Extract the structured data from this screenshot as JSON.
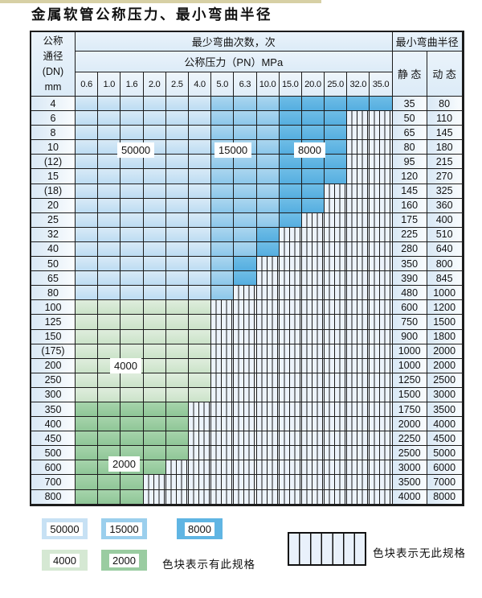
{
  "page": {
    "title": "金属软管公称压力、最小弯曲半径"
  },
  "table": {
    "corner": {
      "lines": [
        "公称",
        "通径",
        "(DN)",
        "mm"
      ]
    },
    "headers": {
      "bend_cycles": "最少弯曲次数，次",
      "pressure": "公称压力（PN）MPa",
      "min_bend_radius": "最小弯曲半径",
      "static": "静 态",
      "dynamic": "动 态"
    },
    "pressure_columns": [
      "0.6",
      "1.0",
      "1.6",
      "2.0",
      "2.5",
      "4.0",
      "5.0",
      "6.3",
      "10.0",
      "15.0",
      "20.0",
      "25.0",
      "32.0",
      "35.0"
    ],
    "cell_code_key": {
      "L": "blue-light: 50000 cycles",
      "M": "blue-medium: 15000 cycles",
      "D": "blue-dark: 8000 cycles",
      "G": "green-light: 4000 cycles",
      "g": "green-medium: 2000 cycles",
      "H": "hatched: no such specification"
    },
    "rows": [
      {
        "dn": "4",
        "cells": "LLLLLLMMMDDDDD",
        "static": "35",
        "dynamic": "80"
      },
      {
        "dn": "6",
        "cells": "LLLLLLMMMDDDHH",
        "static": "50",
        "dynamic": "110"
      },
      {
        "dn": "8",
        "cells": "LLLLLLMMMDDDHH",
        "static": "65",
        "dynamic": "145"
      },
      {
        "dn": "10",
        "cells": "LLLLLLMMMDDDHH",
        "static": "80",
        "dynamic": "180"
      },
      {
        "dn": "(12)",
        "cells": "LLLLLLMMMDDDHH",
        "static": "95",
        "dynamic": "215"
      },
      {
        "dn": "15",
        "cells": "LLLLLLMMMDDDHH",
        "static": "120",
        "dynamic": "270"
      },
      {
        "dn": "(18)",
        "cells": "LLLLLLMMMDDHHH",
        "static": "145",
        "dynamic": "325"
      },
      {
        "dn": "20",
        "cells": "LLLLLLMMMDDHHH",
        "static": "160",
        "dynamic": "360"
      },
      {
        "dn": "25",
        "cells": "LLLLLLMMMDHHHH",
        "static": "175",
        "dynamic": "400"
      },
      {
        "dn": "32",
        "cells": "LLLLLLMMDHHHHH",
        "static": "225",
        "dynamic": "510"
      },
      {
        "dn": "40",
        "cells": "LLLLLLMMDHHHHH",
        "static": "280",
        "dynamic": "640"
      },
      {
        "dn": "50",
        "cells": "LLLLLLMDHHHHHH",
        "static": "350",
        "dynamic": "800"
      },
      {
        "dn": "65",
        "cells": "LLLLLLMDHHHHHH",
        "static": "390",
        "dynamic": "845"
      },
      {
        "dn": "80",
        "cells": "LLLLLLMHHHHHHH",
        "static": "480",
        "dynamic": "1000"
      },
      {
        "dn": "100",
        "cells": "GGGGGGHHHHHHHH",
        "static": "600",
        "dynamic": "1200"
      },
      {
        "dn": "125",
        "cells": "GGGGGGHHHHHHHH",
        "static": "750",
        "dynamic": "1500"
      },
      {
        "dn": "150",
        "cells": "GGGGGGHHHHHHHH",
        "static": "900",
        "dynamic": "1800"
      },
      {
        "dn": "(175)",
        "cells": "GGGGGGHHHHHHHH",
        "static": "1000",
        "dynamic": "2000"
      },
      {
        "dn": "200",
        "cells": "GGGGGGHHHHHHHH",
        "static": "1000",
        "dynamic": "2000"
      },
      {
        "dn": "250",
        "cells": "GGGGGGHHHHHHHH",
        "static": "1250",
        "dynamic": "2500"
      },
      {
        "dn": "300",
        "cells": "GGGGGGHHHHHHHH",
        "static": "1500",
        "dynamic": "3000"
      },
      {
        "dn": "350",
        "cells": "gggggHHHHHHHHH",
        "static": "1750",
        "dynamic": "3500"
      },
      {
        "dn": "400",
        "cells": "gggggHHHHHHHHH",
        "static": "2000",
        "dynamic": "4000"
      },
      {
        "dn": "450",
        "cells": "gggggHHHHHHHHH",
        "static": "2250",
        "dynamic": "4500"
      },
      {
        "dn": "500",
        "cells": "gggggHHHHHHHHH",
        "static": "2500",
        "dynamic": "5000"
      },
      {
        "dn": "600",
        "cells": "ggggHHHHHHHHHH",
        "static": "3000",
        "dynamic": "6000"
      },
      {
        "dn": "700",
        "cells": "gggHHHHHHHHHHH",
        "static": "3500",
        "dynamic": "7000"
      },
      {
        "dn": "800",
        "cells": "gggHHHHHHHHHHH",
        "static": "4000",
        "dynamic": "8000"
      }
    ]
  },
  "overlay_labels": [
    {
      "text": "50000"
    },
    {
      "text": "15000"
    },
    {
      "text": "8000"
    },
    {
      "text": "4000"
    },
    {
      "text": "2000"
    }
  ],
  "legend": {
    "swatches": [
      {
        "text": "50000",
        "color_key": "L"
      },
      {
        "text": "15000",
        "color_key": "M"
      },
      {
        "text": "8000",
        "color_key": "D"
      },
      {
        "text": "4000",
        "color_key": "G"
      },
      {
        "text": "2000",
        "color_key": "g"
      }
    ],
    "has_spec_text": "色块表示有此规格",
    "no_spec_text": "色块表示无此规格"
  },
  "colors": {
    "L": "#c7e1f4",
    "M": "#9bcfed",
    "D": "#60b5e3",
    "G": "#d5e8d3",
    "g": "#9acca1",
    "hatch_bg": "#ecf3fb",
    "grid_line": "#1c1c1c",
    "header_bg": "#e2eef8",
    "top_strip": "#d7d0a5"
  }
}
